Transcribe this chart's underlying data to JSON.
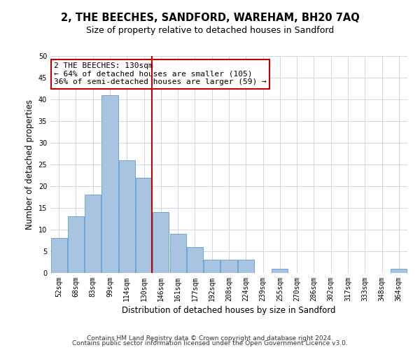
{
  "title": "2, THE BEECHES, SANDFORD, WAREHAM, BH20 7AQ",
  "subtitle": "Size of property relative to detached houses in Sandford",
  "xlabel": "Distribution of detached houses by size in Sandford",
  "ylabel": "Number of detached properties",
  "categories": [
    "52sqm",
    "68sqm",
    "83sqm",
    "99sqm",
    "114sqm",
    "130sqm",
    "146sqm",
    "161sqm",
    "177sqm",
    "192sqm",
    "208sqm",
    "224sqm",
    "239sqm",
    "255sqm",
    "270sqm",
    "286sqm",
    "302sqm",
    "317sqm",
    "333sqm",
    "348sqm",
    "364sqm"
  ],
  "values": [
    8,
    13,
    18,
    41,
    26,
    22,
    14,
    9,
    6,
    3,
    3,
    3,
    0,
    1,
    0,
    0,
    0,
    0,
    0,
    0,
    1
  ],
  "bar_color": "#a8c4e0",
  "bar_edge_color": "#5b9bd5",
  "highlight_color": "#c00000",
  "highlight_index": 5,
  "annotation_line1": "2 THE BEECHES: 130sqm",
  "annotation_line2": "← 64% of detached houses are smaller (105)",
  "annotation_line3": "36% of semi-detached houses are larger (59) →",
  "annotation_box_color": "#ffffff",
  "annotation_box_edge": "#c00000",
  "ylim": [
    0,
    50
  ],
  "yticks": [
    0,
    5,
    10,
    15,
    20,
    25,
    30,
    35,
    40,
    45,
    50
  ],
  "footer_line1": "Contains HM Land Registry data © Crown copyright and database right 2024.",
  "footer_line2": "Contains public sector information licensed under the Open Government Licence v3.0.",
  "background_color": "#ffffff",
  "grid_color": "#c8d8e8",
  "title_fontsize": 10.5,
  "subtitle_fontsize": 9,
  "axis_label_fontsize": 8.5,
  "tick_fontsize": 7,
  "annotation_fontsize": 8,
  "footer_fontsize": 6.5
}
